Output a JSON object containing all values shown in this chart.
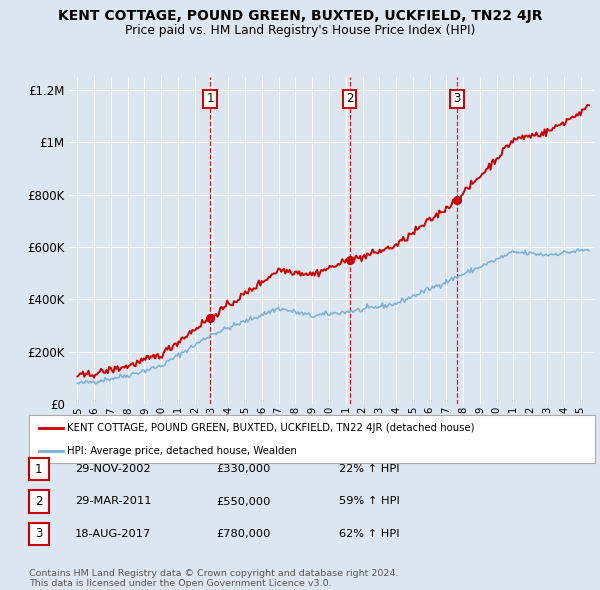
{
  "title": "KENT COTTAGE, POUND GREEN, BUXTED, UCKFIELD, TN22 4JR",
  "subtitle": "Price paid vs. HM Land Registry's House Price Index (HPI)",
  "background_color": "#dce6f1",
  "red_line_color": "#cc0000",
  "blue_line_color": "#7bafd4",
  "sale_points": [
    {
      "index": 1,
      "date": "29-NOV-2002",
      "price": 330000,
      "pct": "22%",
      "x_year": 2002.91
    },
    {
      "index": 2,
      "date": "29-MAR-2011",
      "price": 550000,
      "pct": "59%",
      "x_year": 2011.24
    },
    {
      "index": 3,
      "date": "18-AUG-2017",
      "price": 780000,
      "pct": "62%",
      "x_year": 2017.63
    }
  ],
  "legend_label_red": "KENT COTTAGE, POUND GREEN, BUXTED, UCKFIELD, TN22 4JR (detached house)",
  "legend_label_blue": "HPI: Average price, detached house, Wealden",
  "footnote": "Contains HM Land Registry data © Crown copyright and database right 2024.\nThis data is licensed under the Open Government Licence v3.0.",
  "ylim": [
    0,
    1250000
  ],
  "yticks": [
    0,
    200000,
    400000,
    600000,
    800000,
    1000000,
    1200000
  ],
  "xlim_start": 1994.5,
  "xlim_end": 2025.8
}
